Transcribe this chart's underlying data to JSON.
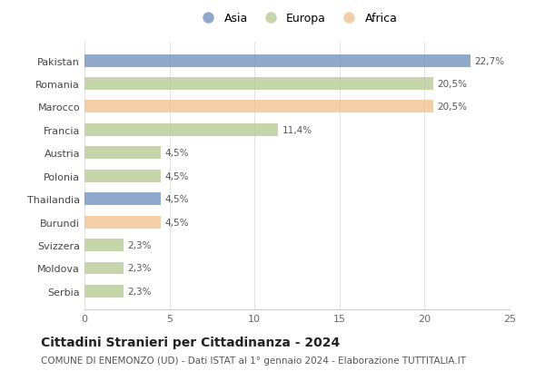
{
  "categories": [
    "Pakistan",
    "Romania",
    "Marocco",
    "Francia",
    "Austria",
    "Polonia",
    "Thailandia",
    "Burundi",
    "Svizzera",
    "Moldova",
    "Serbia"
  ],
  "values": [
    22.7,
    20.5,
    20.5,
    11.4,
    4.5,
    4.5,
    4.5,
    4.5,
    2.3,
    2.3,
    2.3
  ],
  "labels": [
    "22,7%",
    "20,5%",
    "20,5%",
    "11,4%",
    "4,5%",
    "4,5%",
    "4,5%",
    "4,5%",
    "2,3%",
    "2,3%",
    "2,3%"
  ],
  "colors": [
    "#6b8cba",
    "#b5c98e",
    "#f0c08a",
    "#b5c98e",
    "#b5c98e",
    "#b5c98e",
    "#6b8cba",
    "#f0c08a",
    "#b5c98e",
    "#b5c98e",
    "#b5c98e"
  ],
  "legend_labels": [
    "Asia",
    "Europa",
    "Africa"
  ],
  "legend_colors": [
    "#6b8cba",
    "#b5c98e",
    "#f0c08a"
  ],
  "title": "Cittadini Stranieri per Cittadinanza - 2024",
  "subtitle": "COMUNE DI ENEMONZO (UD) - Dati ISTAT al 1° gennaio 2024 - Elaborazione TUTTITALIA.IT",
  "xlim": [
    0,
    25
  ],
  "xticks": [
    0,
    5,
    10,
    15,
    20,
    25
  ],
  "background_color": "#ffffff",
  "bar_alpha": 0.75,
  "title_fontsize": 10,
  "subtitle_fontsize": 7.5,
  "label_fontsize": 7.5,
  "tick_fontsize": 8,
  "legend_fontsize": 9
}
